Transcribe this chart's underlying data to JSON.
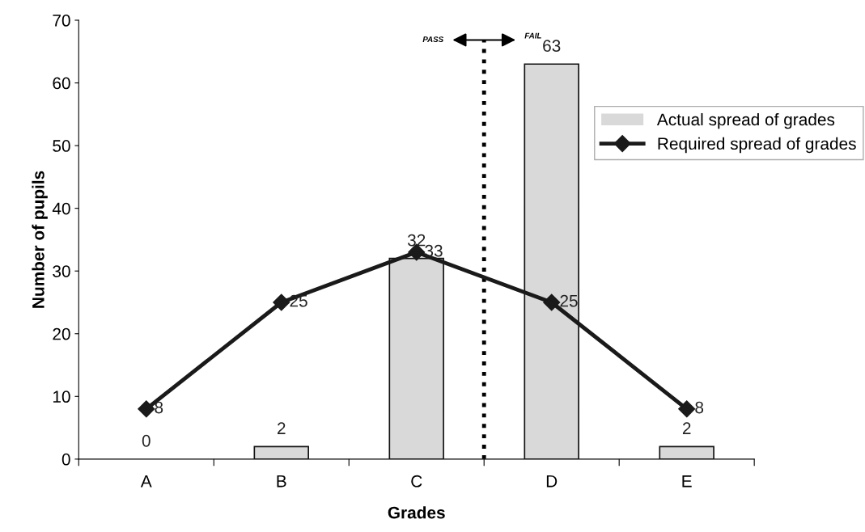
{
  "chart_data": {
    "type": "bar",
    "xlabel": "Grades",
    "ylabel": "Number of pupils",
    "categories": [
      "A",
      "B",
      "C",
      "D",
      "E"
    ],
    "series": [
      {
        "name": "Actual spread of grades",
        "color": "#d9d9d9",
        "values": [
          0,
          2,
          32,
          63,
          2
        ]
      },
      {
        "name": "Required spread of grades",
        "type": "line",
        "color": "#1a1a1a",
        "values": [
          8,
          25,
          33,
          25,
          8
        ],
        "marker": "diamond"
      }
    ],
    "ylim": [
      0,
      70
    ],
    "yticks": [
      0,
      10,
      20,
      30,
      40,
      50,
      60,
      70
    ],
    "data_labels": true,
    "legend": "right",
    "grid": false,
    "annotations": [
      "PASS",
      "FAIL"
    ]
  }
}
